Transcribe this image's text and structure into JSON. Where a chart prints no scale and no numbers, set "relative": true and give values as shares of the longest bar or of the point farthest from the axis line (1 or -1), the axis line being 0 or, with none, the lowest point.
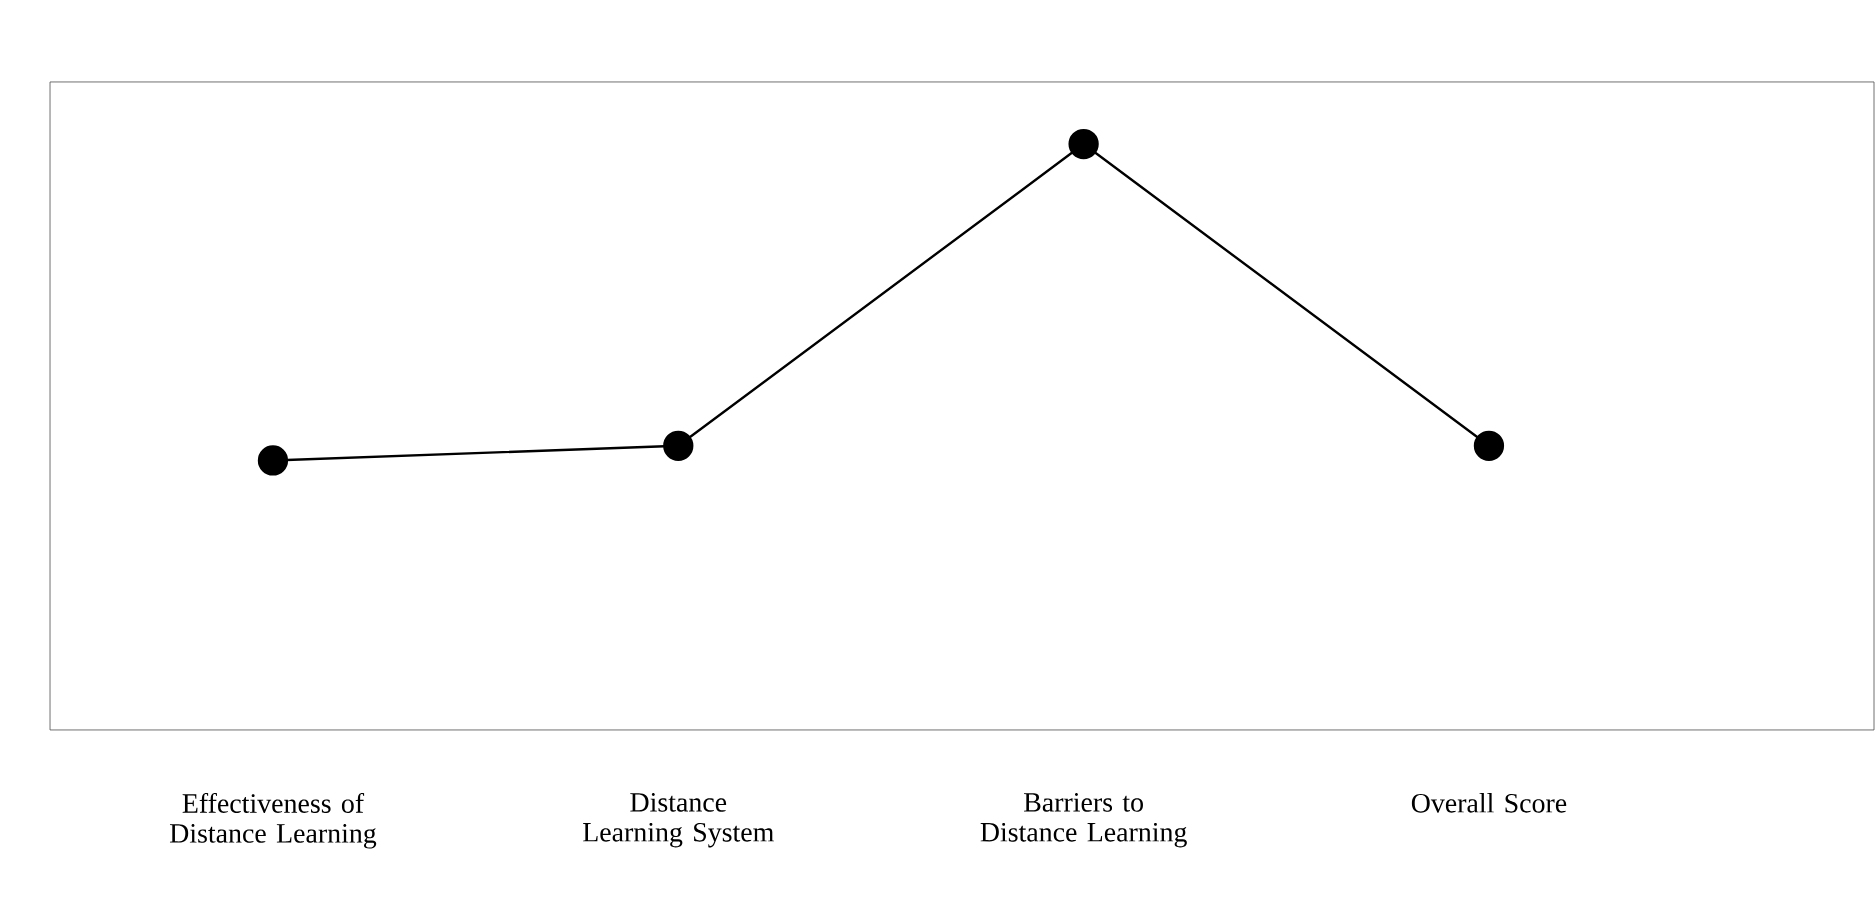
{
  "chart_data": {
    "type": "line",
    "relative": true,
    "categories": [
      "Effectiveness of Distance Learning",
      "Distance Learning System",
      "Barriers to Distance Learning",
      "Overall Score"
    ],
    "series": [
      {
        "color": "#000000",
        "values": [
          0.46,
          0.485,
          1,
          0.485
        ]
      }
    ],
    "marker": "circle",
    "line_style": "solid"
  }
}
